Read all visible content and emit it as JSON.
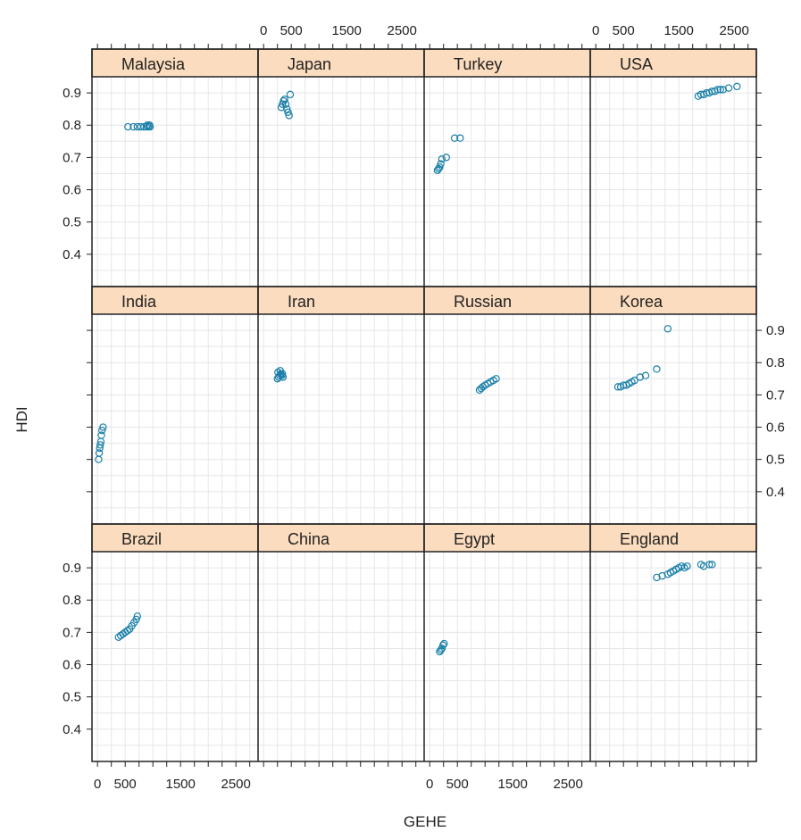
{
  "chart_data": {
    "type": "scatter",
    "xlabel": "GEHE",
    "ylabel": "HDI",
    "xlim": [
      -100,
      2900
    ],
    "ylim": [
      0.3,
      0.95
    ],
    "x_ticks": [
      0,
      500,
      1500,
      2500
    ],
    "x_tick_labels": [
      "0",
      "500",
      "1500",
      "2500"
    ],
    "y_ticks": [
      0.4,
      0.5,
      0.6,
      0.7,
      0.8,
      0.9
    ],
    "y_tick_labels": [
      "0.4",
      "0.5",
      "0.6",
      "0.7",
      "0.8",
      "0.9"
    ],
    "grid": true,
    "colors": {
      "strip": "#fcdcbe",
      "point": "#1a7fa8",
      "grid": "#e6e6e6",
      "frame": "#222222"
    },
    "panels": [
      {
        "name": "Malaysia",
        "x": [
          550,
          650,
          720,
          780,
          840,
          880,
          900,
          920,
          940,
          950
        ],
        "y": [
          0.795,
          0.795,
          0.795,
          0.795,
          0.795,
          0.795,
          0.8,
          0.795,
          0.8,
          0.795
        ]
      },
      {
        "name": "Japan",
        "x": [
          320,
          340,
          360,
          380,
          400,
          420,
          440,
          460,
          480
        ],
        "y": [
          0.855,
          0.865,
          0.875,
          0.88,
          0.865,
          0.85,
          0.84,
          0.83,
          0.895
        ]
      },
      {
        "name": "Turkey",
        "x": [
          140,
          160,
          180,
          200,
          220,
          300,
          450,
          550
        ],
        "y": [
          0.66,
          0.665,
          0.67,
          0.68,
          0.695,
          0.7,
          0.76,
          0.76
        ]
      },
      {
        "name": "USA",
        "x": [
          1850,
          1900,
          1950,
          2000,
          2050,
          2100,
          2150,
          2200,
          2250,
          2300,
          2400,
          2550
        ],
        "y": [
          0.89,
          0.895,
          0.895,
          0.9,
          0.9,
          0.905,
          0.905,
          0.91,
          0.91,
          0.91,
          0.915,
          0.92
        ]
      },
      {
        "name": "India",
        "x": [
          20,
          30,
          40,
          50,
          60,
          70,
          80,
          100
        ],
        "y": [
          0.5,
          0.52,
          0.535,
          0.545,
          0.555,
          0.575,
          0.59,
          0.6
        ]
      },
      {
        "name": "Iran",
        "x": [
          250,
          270,
          290,
          310,
          330,
          350,
          260,
          300,
          340
        ],
        "y": [
          0.75,
          0.755,
          0.76,
          0.765,
          0.76,
          0.755,
          0.77,
          0.775,
          0.765
        ]
      },
      {
        "name": "Russian",
        "x": [
          900,
          930,
          960,
          1000,
          1050,
          1100,
          1150,
          1200
        ],
        "y": [
          0.715,
          0.72,
          0.725,
          0.73,
          0.735,
          0.74,
          0.745,
          0.75
        ]
      },
      {
        "name": "Korea",
        "x": [
          400,
          450,
          500,
          550,
          600,
          650,
          700,
          800,
          900,
          1100,
          1300
        ],
        "y": [
          0.725,
          0.725,
          0.73,
          0.73,
          0.735,
          0.74,
          0.745,
          0.755,
          0.76,
          0.78,
          0.905
        ]
      },
      {
        "name": "Brazil",
        "x": [
          380,
          420,
          460,
          500,
          540,
          580,
          620,
          660,
          700,
          720
        ],
        "y": [
          0.685,
          0.69,
          0.695,
          0.7,
          0.705,
          0.71,
          0.72,
          0.73,
          0.74,
          0.75
        ]
      },
      {
        "name": "China",
        "x": [],
        "y": []
      },
      {
        "name": "Egypt",
        "x": [
          180,
          200,
          220,
          240,
          260
        ],
        "y": [
          0.64,
          0.645,
          0.65,
          0.66,
          0.665
        ]
      },
      {
        "name": "England",
        "x": [
          1100,
          1200,
          1300,
          1350,
          1400,
          1450,
          1500,
          1550,
          1600,
          1650,
          1900,
          1950,
          2050,
          2100
        ],
        "y": [
          0.87,
          0.875,
          0.88,
          0.885,
          0.89,
          0.895,
          0.9,
          0.905,
          0.9,
          0.905,
          0.91,
          0.905,
          0.91,
          0.91
        ]
      }
    ]
  }
}
